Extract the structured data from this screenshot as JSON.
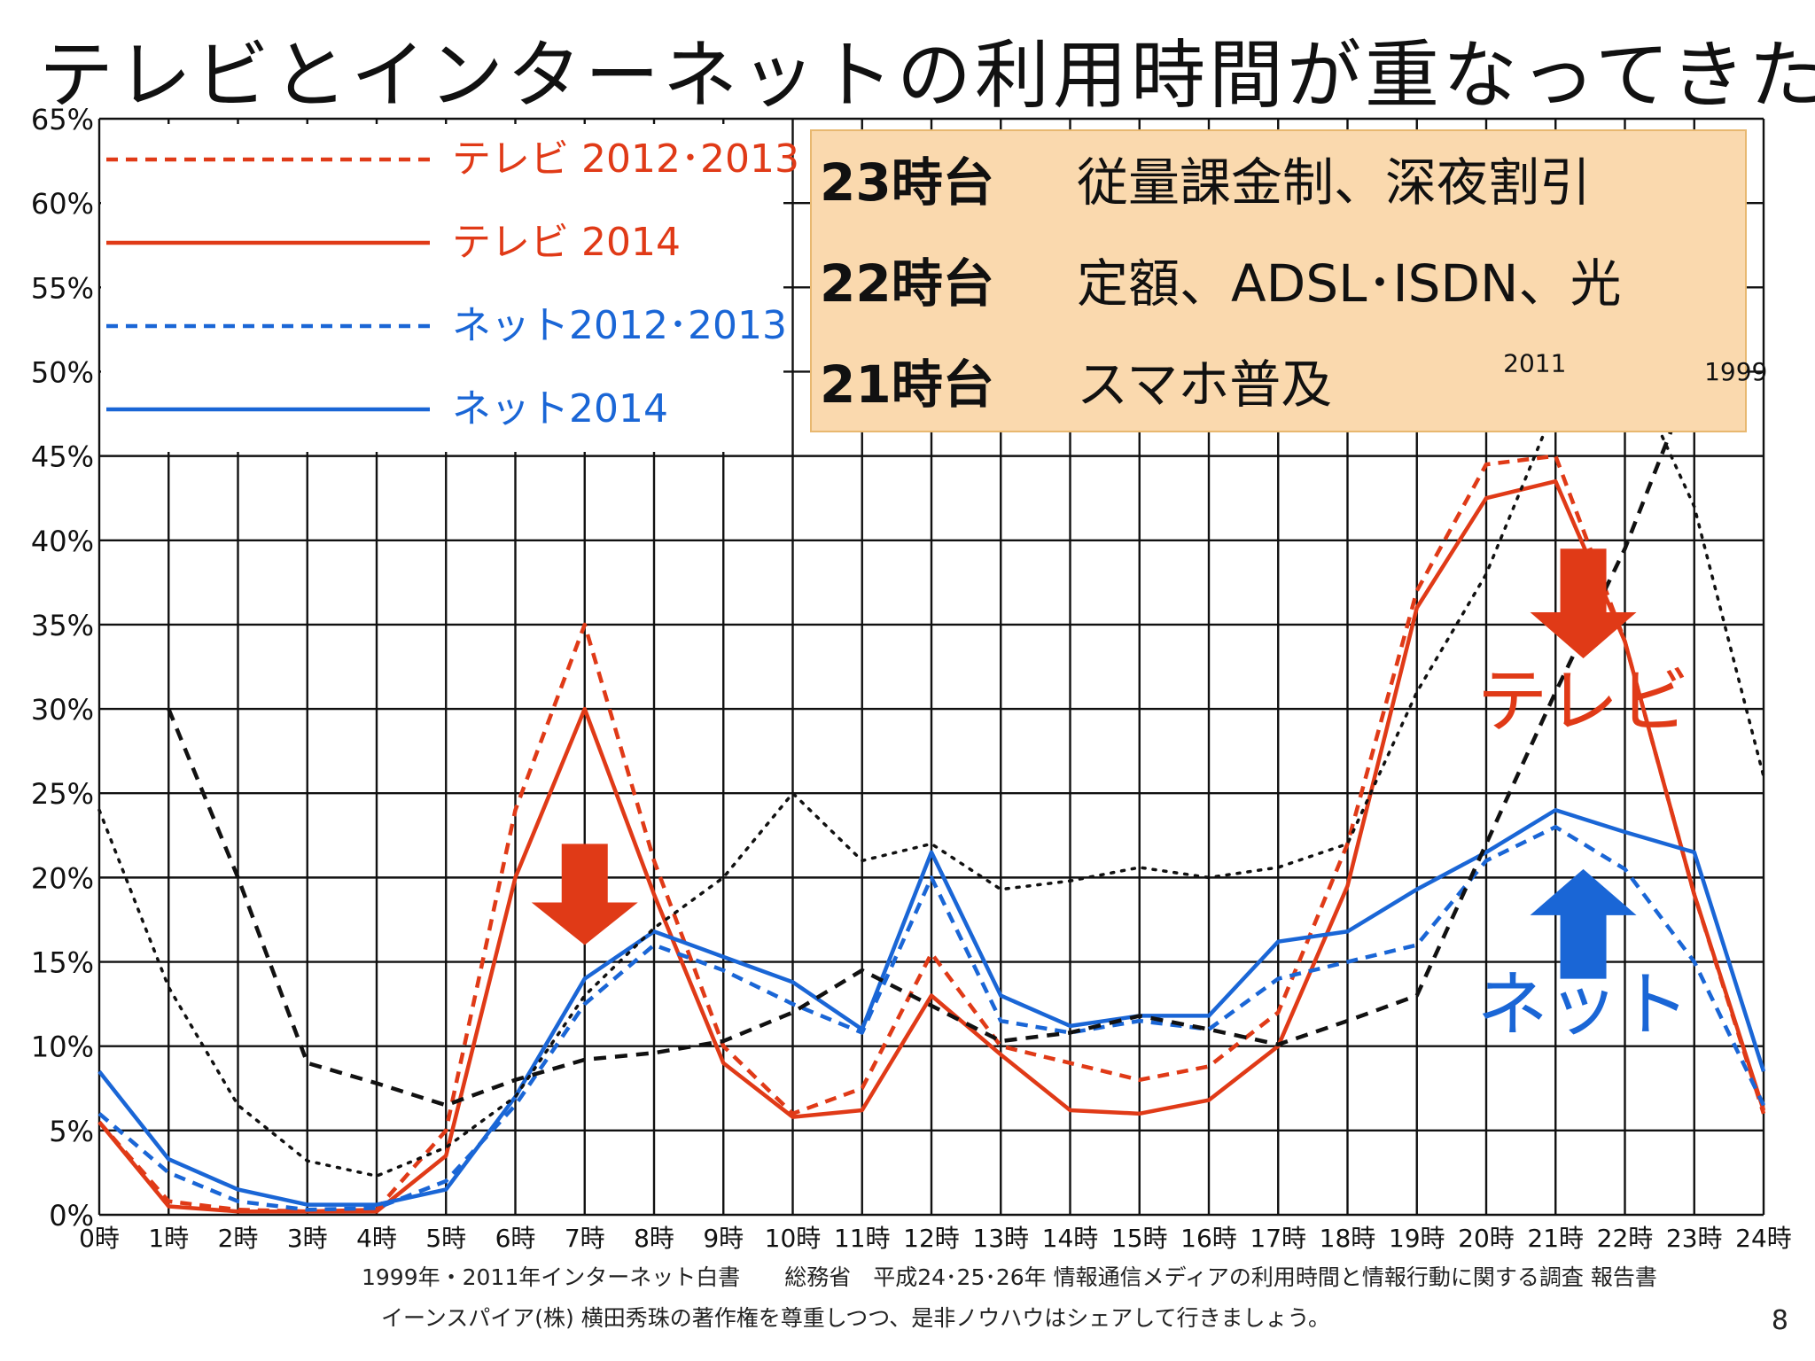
{
  "title": "テレビとインターネットの利用時間が重なってきた",
  "footer": {
    "source": "1999年・2011年インターネット白書　　総務省　平成24･25･26年 情報通信メディアの利用時間と情報行動に関する調査 報告書",
    "copyright": "イーンスパイア(株) 横田秀珠の著作権を尊重しつつ、是非ノウハウはシェアして行きましょう。",
    "page": "8"
  },
  "infobox": {
    "bg": "#fad9ae",
    "border": "#e8b870",
    "rows": [
      {
        "hour": "23時台",
        "text": "従量課金制、深夜割引"
      },
      {
        "hour": "22時台",
        "text": "定額、ADSL･ISDN、光"
      },
      {
        "hour": "21時台",
        "text": "スマホ普及"
      }
    ]
  },
  "arrows": [
    {
      "name": "tv-down-arrow-morning",
      "direction": "down",
      "color": "#e03a17",
      "x": 7,
      "y_top": 22,
      "y_bottom": 16
    },
    {
      "name": "tv-down-arrow-evening",
      "direction": "down",
      "color": "#e03a17",
      "x": 21.4,
      "y_top": 39.5,
      "y_bottom": 33
    },
    {
      "name": "net-up-arrow-evening",
      "direction": "up",
      "color": "#1a66d6",
      "x": 21.4,
      "y_top": 20.5,
      "y_bottom": 14
    }
  ],
  "big_labels": [
    {
      "text": "テレビ",
      "color": "#e03a17",
      "x": 21.4,
      "y": 29
    },
    {
      "text": "ネット",
      "color": "#1a66d6",
      "x": 21.4,
      "y": 11
    }
  ],
  "chart_data": {
    "type": "line",
    "x": [
      0,
      1,
      2,
      3,
      4,
      5,
      6,
      7,
      8,
      9,
      10,
      11,
      12,
      13,
      14,
      15,
      16,
      17,
      18,
      19,
      20,
      21,
      22,
      23,
      24
    ],
    "x_tick_labels": [
      "0時",
      "1時",
      "2時",
      "3時",
      "4時",
      "5時",
      "6時",
      "7時",
      "8時",
      "9時",
      "10時",
      "11時",
      "12時",
      "13時",
      "14時",
      "15時",
      "16時",
      "17時",
      "18時",
      "19時",
      "20時",
      "21時",
      "22時",
      "23時",
      "24時"
    ],
    "y_tick_labels": [
      "0%",
      "5%",
      "10%",
      "15%",
      "20%",
      "25%",
      "30%",
      "35%",
      "40%",
      "45%",
      "50%",
      "55%",
      "60%",
      "65%"
    ],
    "ylim": [
      0,
      65
    ],
    "xlim": [
      0,
      24
    ],
    "grid": true,
    "legend_position": "top-left",
    "series": [
      {
        "name": "テレビ 2012･2013",
        "color": "#e03a17",
        "style": "dashed",
        "in_legend": true,
        "values": [
          5.5,
          0.8,
          0.3,
          0.2,
          0.3,
          5,
          24,
          35,
          21,
          10,
          6,
          7.5,
          15.5,
          10,
          9,
          8,
          8.8,
          12,
          22,
          37,
          44.5,
          45,
          34,
          19,
          6
        ]
      },
      {
        "name": "テレビ 2014",
        "color": "#e03a17",
        "style": "solid",
        "in_legend": true,
        "values": [
          5.5,
          0.5,
          0.2,
          0.2,
          0.2,
          3.5,
          20,
          30,
          19,
          9,
          5.8,
          6.2,
          13,
          9.5,
          6.2,
          6,
          6.8,
          10,
          19.5,
          36,
          42.5,
          43.5,
          34,
          19,
          6.2
        ]
      },
      {
        "name": "ネット2012･2013",
        "color": "#1a66d6",
        "style": "dashed",
        "in_legend": true,
        "values": [
          6,
          2.5,
          0.8,
          0.3,
          0.4,
          2,
          6.5,
          12.5,
          16,
          14.5,
          12.5,
          10.8,
          20,
          11.5,
          10.8,
          11.5,
          11,
          14,
          15,
          16,
          21,
          23,
          20.5,
          15,
          6.5
        ]
      },
      {
        "name": "ネット2014",
        "color": "#1a66d6",
        "style": "solid",
        "in_legend": true,
        "values": [
          8.5,
          3.3,
          1.5,
          0.6,
          0.6,
          1.5,
          7,
          14,
          16.8,
          15.3,
          13.8,
          11,
          21.5,
          13,
          11.2,
          11.8,
          11.8,
          16.2,
          16.8,
          19.3,
          21.5,
          24,
          22.7,
          21.5,
          8.5
        ]
      },
      {
        "name": "2011",
        "color": "#111111",
        "style": "dotted",
        "in_legend": false,
        "values": [
          24,
          13.5,
          6.5,
          3.2,
          2.3,
          4,
          7,
          13,
          17,
          20,
          25,
          21,
          22,
          19.3,
          19.8,
          20.6,
          20,
          20.6,
          22,
          31,
          38,
          48,
          51,
          42,
          26
        ]
      },
      {
        "name": "1999",
        "color": "#111111",
        "style": "dashed-black",
        "in_legend": false,
        "values": [
          null,
          30,
          20,
          9,
          7.8,
          6.5,
          8,
          9.2,
          9.6,
          10.3,
          12,
          14.5,
          12.4,
          10.3,
          10.8,
          11.8,
          11,
          10.1,
          11.5,
          13,
          22,
          31,
          39.5,
          50,
          null
        ]
      }
    ],
    "annotations": [
      {
        "text": "2011",
        "x": 20.7,
        "y": 50
      },
      {
        "text": "1999",
        "x": 23.6,
        "y": 49.5
      }
    ]
  }
}
